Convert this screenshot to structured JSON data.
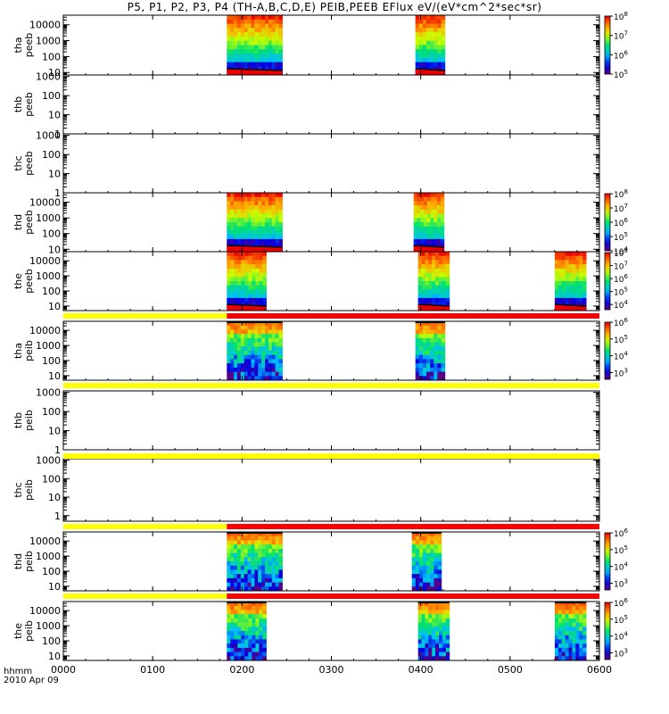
{
  "title": "P5, P1, P2, P3, P4 (TH-A,B,C,D,E) PEIB,PEEB EFlux eV/(eV*cm^2*sec*sr)",
  "time_axis": {
    "corner_label": "hhmm",
    "date_label": "2010 Apr 09",
    "tick_labels": [
      "0000",
      "0100",
      "0200",
      "0300",
      "0400",
      "0500",
      "0600"
    ],
    "range_hours": [
      0,
      6
    ]
  },
  "chart_data": {
    "type": "heatmap",
    "title": "P5, P1, P2, P3, P4 (TH-A,B,C,D,E) PEIB,PEEB EFlux eV/(eV*cm^2*sec*sr)",
    "x_units": "hours UT, 2010 Apr 09",
    "xlim": [
      0,
      6
    ],
    "y_scale": "log",
    "z_scale": "log",
    "colormap": "rainbow (purple-blue-cyan-green-yellow-red)",
    "panels": [
      {
        "label": "tha peeb",
        "ylim": [
          7,
          40000
        ],
        "y_ticks": [
          "10",
          "100",
          "1000",
          "10000"
        ],
        "colorbar": {
          "range_exp": [
            5,
            8
          ],
          "labels": [
            "10^5",
            "10^6",
            "10^7",
            "10^8"
          ]
        },
        "data_intervals_hours": [
          [
            1.83,
            2.45
          ],
          [
            3.94,
            4.27
          ]
        ]
      },
      {
        "label": "thb peeb",
        "ylim": [
          1,
          1200
        ],
        "y_ticks": [
          "1",
          "10",
          "100",
          "1000"
        ],
        "data_intervals_hours": []
      },
      {
        "label": "thc peeb",
        "ylim": [
          1,
          1200
        ],
        "y_ticks": [
          "1",
          "10",
          "100",
          "1000"
        ],
        "data_intervals_hours": []
      },
      {
        "label": "thd peeb",
        "ylim": [
          7,
          40000
        ],
        "y_ticks": [
          "10",
          "100",
          "1000",
          "10000"
        ],
        "colorbar": {
          "range_exp": [
            4,
            8
          ],
          "labels": [
            "10^4",
            "10^5",
            "10^6",
            "10^7",
            "10^8"
          ]
        },
        "data_intervals_hours": [
          [
            1.83,
            2.45
          ],
          [
            3.92,
            4.26
          ]
        ]
      },
      {
        "label": "the peeb",
        "ylim": [
          5,
          40000
        ],
        "y_ticks": [
          "10",
          "100",
          "1000",
          "10000"
        ],
        "colorbar": {
          "range_exp": [
            3.6,
            8
          ],
          "labels": [
            "10^4",
            "10^5",
            "10^6",
            "10^7",
            "10^8"
          ]
        },
        "data_intervals_hours": [
          [
            1.83,
            2.27
          ],
          [
            3.97,
            4.32
          ],
          [
            5.5,
            5.85
          ]
        ]
      },
      {
        "label": "tha peib",
        "ylim": [
          5,
          40000
        ],
        "y_ticks": [
          "10",
          "100",
          "1000",
          "10000"
        ],
        "colorbar": {
          "range_exp": [
            2.6,
            6
          ],
          "labels": [
            "10^3",
            "10^4",
            "10^5",
            "10^6"
          ]
        },
        "data_intervals_hours": [
          [
            1.83,
            2.45
          ],
          [
            3.94,
            4.27
          ]
        ]
      },
      {
        "label": "thb peib",
        "ylim": [
          1,
          1200
        ],
        "y_ticks": [
          "1",
          "10",
          "100",
          "1000"
        ],
        "data_intervals_hours": []
      },
      {
        "label": "thc peib",
        "ylim": [
          0.5,
          1200
        ],
        "y_ticks": [
          "1",
          "10",
          "100",
          "1000"
        ],
        "data_intervals_hours": []
      },
      {
        "label": "thd peib",
        "ylim": [
          5,
          40000
        ],
        "y_ticks": [
          "10",
          "100",
          "1000",
          "10000"
        ],
        "colorbar": {
          "range_exp": [
            2.6,
            6
          ],
          "labels": [
            "10^3",
            "10^4",
            "10^5",
            "10^6"
          ]
        },
        "data_intervals_hours": [
          [
            1.83,
            2.45
          ],
          [
            3.9,
            4.23
          ]
        ]
      },
      {
        "label": "the peib",
        "ylim": [
          5,
          40000
        ],
        "y_ticks": [
          "10",
          "100",
          "1000",
          "10000"
        ],
        "colorbar": {
          "range_exp": [
            2.6,
            6
          ],
          "labels": [
            "10^3",
            "10^4",
            "10^5",
            "10^6"
          ]
        },
        "data_intervals_hours": [
          [
            1.83,
            2.27
          ],
          [
            3.97,
            4.32
          ],
          [
            5.5,
            5.85
          ]
        ]
      }
    ],
    "mode_bars": [
      {
        "above_panel": "the peeb",
        "segments": [
          {
            "from": 0,
            "to": 1.83,
            "color": "#ffff00"
          },
          {
            "from": 1.83,
            "to": 6,
            "color": "#ff0000"
          }
        ]
      },
      {
        "above_panel": "thb peib",
        "segments": [
          {
            "from": 0,
            "to": 6,
            "color": "#ffff00"
          }
        ]
      },
      {
        "above_panel": "thc peib",
        "segments": [
          {
            "from": 0,
            "to": 6,
            "color": "#ffff00"
          }
        ]
      },
      {
        "above_panel": "thd peib",
        "segments": [
          {
            "from": 0,
            "to": 1.83,
            "color": "#ffff00"
          },
          {
            "from": 1.83,
            "to": 6,
            "color": "#ff0000"
          }
        ]
      },
      {
        "above_panel": "the peib",
        "segments": [
          {
            "from": 0,
            "to": 1.83,
            "color": "#ffff00"
          },
          {
            "from": 1.83,
            "to": 6,
            "color": "#ff0000"
          }
        ]
      }
    ]
  }
}
